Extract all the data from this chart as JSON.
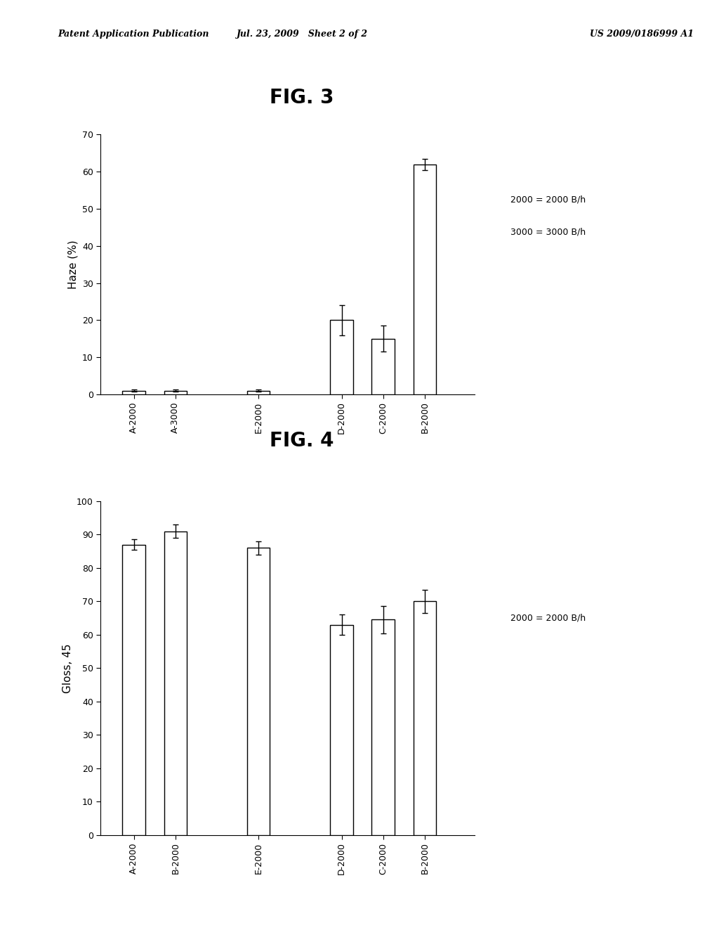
{
  "header_left": "Patent Application Publication",
  "header_mid": "Jul. 23, 2009   Sheet 2 of 2",
  "header_right": "US 2009/0186999 A1",
  "fig3": {
    "title": "FIG. 3",
    "ylabel": "Haze (%)",
    "ylim": [
      0,
      70
    ],
    "yticks": [
      0,
      10,
      20,
      30,
      40,
      50,
      60,
      70
    ],
    "bar_positions": [
      1,
      2,
      4,
      6,
      7,
      8
    ],
    "bar_labels": [
      "A-2000",
      "A-3000",
      "E-2000",
      "D-2000",
      "C-2000",
      "B-2000"
    ],
    "values": [
      1.0,
      1.0,
      1.0,
      20.0,
      15.0,
      62.0
    ],
    "errors": [
      0.3,
      0.3,
      0.3,
      4.0,
      3.5,
      1.5
    ],
    "bar_color": "#ffffff",
    "bar_edgecolor": "#000000",
    "legend_lines": [
      "2000 = 2000 B/h",
      "3000 = 3000 B/h"
    ]
  },
  "fig4": {
    "title": "FIG. 4",
    "ylabel": "Gloss, 45",
    "ylim": [
      0,
      100
    ],
    "yticks": [
      0,
      10,
      20,
      30,
      40,
      50,
      60,
      70,
      80,
      90,
      100
    ],
    "bar_positions": [
      1,
      2,
      4,
      6,
      7,
      8
    ],
    "bar_labels": [
      "A-2000",
      "B-2000",
      "E-2000",
      "D-2000",
      "C-2000",
      "B-2000"
    ],
    "values": [
      87.0,
      91.0,
      86.0,
      63.0,
      64.5,
      70.0
    ],
    "errors": [
      1.5,
      2.0,
      2.0,
      3.0,
      4.0,
      3.5
    ],
    "bar_color": "#ffffff",
    "bar_edgecolor": "#000000",
    "legend_lines": [
      "2000 = 2000 B/h"
    ]
  },
  "background_color": "#ffffff",
  "font_color": "#000000",
  "title_fontsize": 20,
  "axis_fontsize": 11,
  "tick_fontsize": 9,
  "bar_width": 0.55,
  "xlim": [
    0.2,
    9.2
  ]
}
